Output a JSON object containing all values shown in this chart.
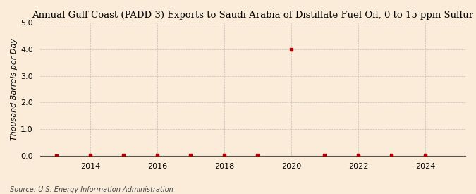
{
  "title": "Annual Gulf Coast (PADD 3) Exports to Saudi Arabia of Distillate Fuel Oil, 0 to 15 ppm Sulfur",
  "ylabel": "Thousand Barrels per Day",
  "source": "Source: U.S. Energy Information Administration",
  "background_color": "#faecd8",
  "x_years": [
    2013,
    2014,
    2015,
    2016,
    2017,
    2018,
    2019,
    2020,
    2021,
    2022,
    2023,
    2024
  ],
  "y_values": [
    0.0,
    0.03,
    0.03,
    0.03,
    0.03,
    0.03,
    0.03,
    4.0,
    0.03,
    0.03,
    0.03,
    0.03
  ],
  "xlim": [
    2012.5,
    2025.2
  ],
  "ylim": [
    0.0,
    5.0
  ],
  "yticks": [
    0.0,
    1.0,
    2.0,
    3.0,
    4.0,
    5.0
  ],
  "xticks": [
    2014,
    2016,
    2018,
    2020,
    2022,
    2024
  ],
  "marker_color": "#aa0000",
  "grid_color": "#bbbbbb",
  "title_fontsize": 9.5,
  "label_fontsize": 8,
  "tick_fontsize": 8,
  "source_fontsize": 7
}
